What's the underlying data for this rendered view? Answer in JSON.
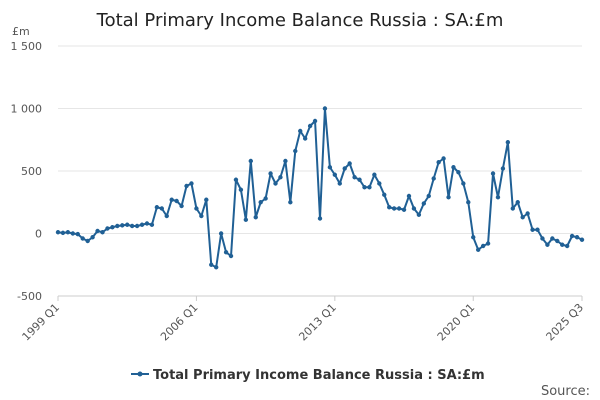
{
  "chart_data": {
    "type": "line",
    "title": "Total Primary Income Balance Russia : SA:£m",
    "ylabel": "£m",
    "xlabel": "",
    "ylim": [
      -500,
      1500
    ],
    "y_ticks": [
      -500,
      0,
      500,
      1000,
      1500
    ],
    "y_tick_labels": [
      "-500",
      "0",
      "500",
      "1 000",
      "1 500"
    ],
    "x_tick_labels": [
      "1999 Q1",
      "2006 Q1",
      "2013 Q1",
      "2020 Q1",
      "2025 Q3"
    ],
    "x_tick_indices": [
      0,
      28,
      56,
      84,
      106
    ],
    "legend": "Total Primary Income Balance Russia : SA:£m",
    "legend_position": "bottom",
    "grid": true,
    "color": "#206095",
    "source_label": "Source:",
    "series": [
      {
        "name": "Total Primary Income Balance Russia : SA:£m",
        "start": "1999 Q1",
        "end": "2025 Q3",
        "values": [
          10,
          5,
          10,
          0,
          -5,
          -40,
          -60,
          -30,
          20,
          10,
          40,
          50,
          60,
          65,
          70,
          60,
          60,
          70,
          80,
          70,
          210,
          200,
          140,
          270,
          260,
          220,
          380,
          400,
          200,
          140,
          270,
          -250,
          -270,
          0,
          -150,
          -180,
          430,
          350,
          110,
          580,
          130,
          250,
          280,
          480,
          400,
          450,
          580,
          250,
          660,
          820,
          760,
          860,
          900,
          120,
          1000,
          530,
          470,
          400,
          520,
          560,
          450,
          430,
          370,
          370,
          470,
          400,
          310,
          210,
          200,
          200,
          190,
          300,
          200,
          150,
          240,
          300,
          440,
          570,
          600,
          290,
          530,
          490,
          400,
          250,
          -30,
          -130,
          -100,
          -80,
          480,
          290,
          520,
          730,
          200,
          250,
          130,
          160,
          30,
          30,
          -40,
          -90,
          -40,
          -60,
          -90,
          -100,
          -20,
          -30,
          -50
        ]
      }
    ]
  }
}
